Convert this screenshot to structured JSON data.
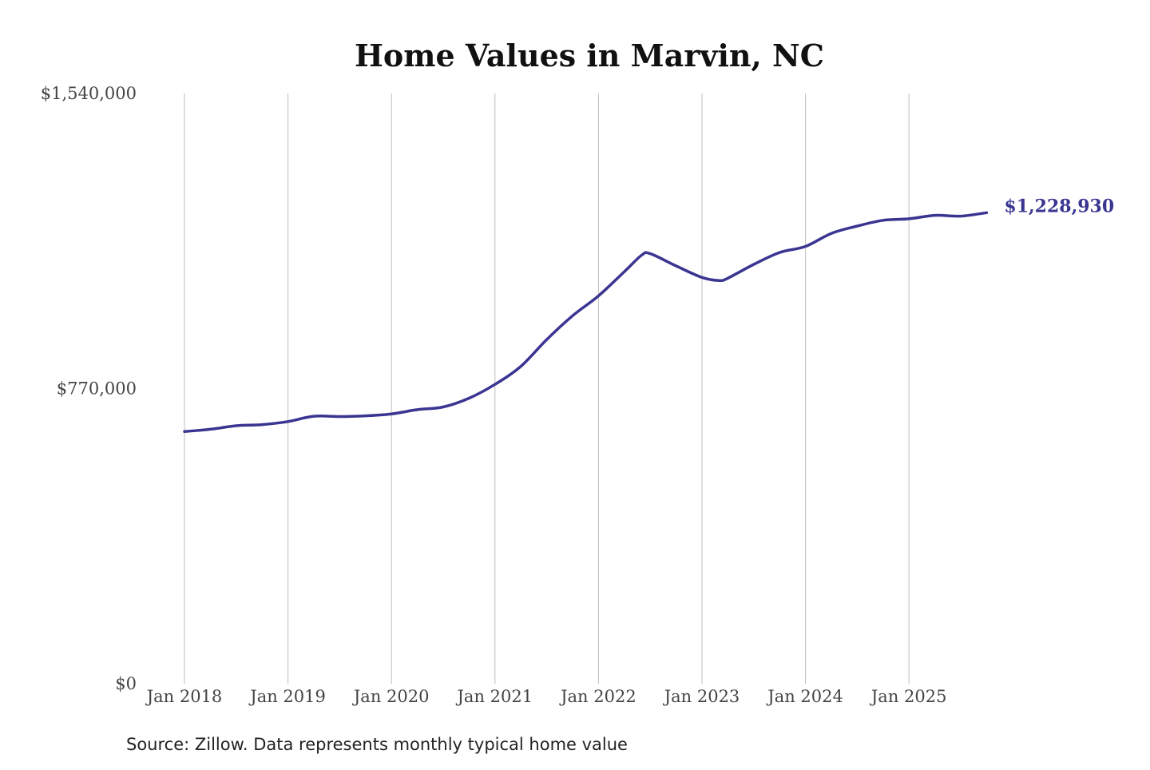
{
  "chart_data": {
    "type": "line",
    "title": "Home Values in Marvin, NC",
    "source": "Source: Zillow. Data represents monthly typical home value",
    "xlabel": "",
    "ylabel": "",
    "ylim": [
      0,
      1540000
    ],
    "y_ticks": [
      {
        "value": 0,
        "label": "$0"
      },
      {
        "value": 770000,
        "label": "$770,000"
      },
      {
        "value": 1540000,
        "label": "$1,540,000"
      }
    ],
    "x_ticks": [
      {
        "value": "2018-01",
        "label": "Jan 2018"
      },
      {
        "value": "2019-01",
        "label": "Jan 2019"
      },
      {
        "value": "2020-01",
        "label": "Jan 2020"
      },
      {
        "value": "2021-01",
        "label": "Jan 2021"
      },
      {
        "value": "2022-01",
        "label": "Jan 2022"
      },
      {
        "value": "2023-01",
        "label": "Jan 2023"
      },
      {
        "value": "2024-01",
        "label": "Jan 2024"
      },
      {
        "value": "2025-01",
        "label": "Jan 2025"
      }
    ],
    "grid": {
      "vertical": true,
      "horizontal": false
    },
    "line_color": "#3a3591",
    "end_label": "$1,228,930",
    "series": [
      {
        "x": [
          "2018-01",
          "2018-04",
          "2018-07",
          "2018-10",
          "2019-01",
          "2019-04",
          "2019-07",
          "2019-10",
          "2020-01",
          "2020-04",
          "2020-07",
          "2020-10",
          "2021-01",
          "2021-04",
          "2021-07",
          "2021-10",
          "2022-01",
          "2022-04",
          "2022-06",
          "2022-07",
          "2022-10",
          "2023-01",
          "2023-03",
          "2023-04",
          "2023-07",
          "2023-10",
          "2024-01",
          "2024-04",
          "2024-07",
          "2024-10",
          "2025-01",
          "2025-04",
          "2025-07",
          "2025-10"
        ],
        "values": [
          658000,
          664000,
          673000,
          676000,
          684000,
          698000,
          697000,
          699000,
          704000,
          715000,
          722000,
          745000,
          781000,
          828000,
          898000,
          960000,
          1012000,
          1075000,
          1118000,
          1122000,
          1090000,
          1060000,
          1052000,
          1058000,
          1094000,
          1125000,
          1141000,
          1175000,
          1194000,
          1209000,
          1213000,
          1222000,
          1220000,
          1228930
        ]
      }
    ]
  }
}
